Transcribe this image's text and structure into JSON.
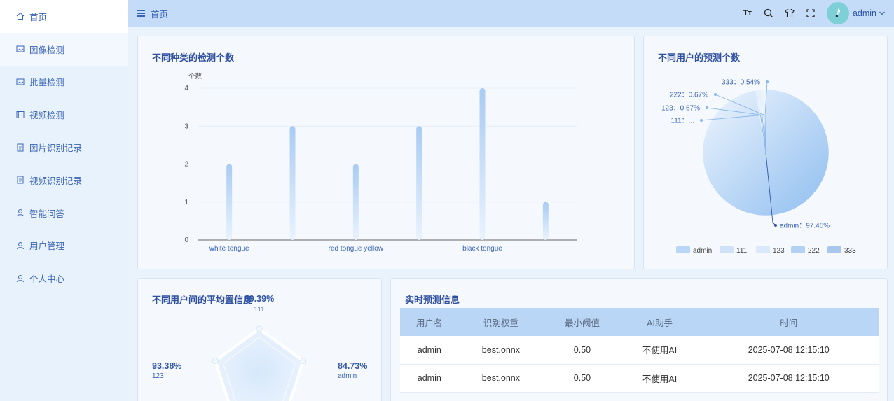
{
  "sidebar": {
    "items": [
      {
        "label": "首页",
        "icon": "home-icon"
      },
      {
        "label": "图像检测",
        "icon": "image-icon"
      },
      {
        "label": "批量检测",
        "icon": "image-icon"
      },
      {
        "label": "视频检测",
        "icon": "video-icon"
      },
      {
        "label": "图片识别记录",
        "icon": "record-icon"
      },
      {
        "label": "视频识别记录",
        "icon": "record-icon"
      },
      {
        "label": "智能问答",
        "icon": "user-icon"
      },
      {
        "label": "用户管理",
        "icon": "user-icon"
      },
      {
        "label": "个人中心",
        "icon": "user-icon"
      }
    ]
  },
  "header": {
    "breadcrumb": "首页",
    "username": "admin",
    "font_tool_label": "Tт"
  },
  "cards": {
    "bar_title": "不同种类的检测个数",
    "pie_title": "不同用户的预测个数",
    "radar_title": "不同用户间的平均置信度",
    "table_title": "实时预测信息"
  },
  "chart_data": [
    {
      "type": "bar",
      "title": "不同种类的检测个数",
      "ylabel": "个数",
      "ylim": [
        0,
        4
      ],
      "yticks": [
        "0",
        "1",
        "2",
        "3",
        "4"
      ],
      "category_labels_shown": [
        "white tongue",
        "red tongue yellow",
        "black tongue"
      ],
      "values": [
        2,
        3,
        2,
        3,
        4,
        1
      ]
    },
    {
      "type": "pie",
      "title": "不同用户的预测个数",
      "slices": [
        {
          "name": "admin",
          "value": 97.45,
          "label": "admin：97.45%"
        },
        {
          "name": "111",
          "value": 0.67,
          "label": "111：..."
        },
        {
          "name": "123",
          "value": 0.67,
          "label": "123：0.67%"
        },
        {
          "name": "222",
          "value": 0.67,
          "label": "222：0.67%"
        },
        {
          "name": "333",
          "value": 0.54,
          "label": "333：0.54%"
        }
      ],
      "legend": [
        "admin",
        "111",
        "123",
        "222",
        "333"
      ],
      "legend_position": "bottom"
    },
    {
      "type": "radar",
      "title": "不同用户间的平均置信度",
      "indicators": [
        {
          "name": "111",
          "value": "89.39%"
        },
        {
          "name": "admin",
          "value": "84.73%"
        },
        {
          "name": "123",
          "value": "93.38%"
        }
      ]
    }
  ],
  "table": {
    "headers": [
      "用户名",
      "识别权重",
      "最小阈值",
      "AI助手",
      "时间"
    ],
    "rows": [
      [
        "admin",
        "best.onnx",
        "0.50",
        "不使用AI",
        "2025-07-08 12:15:10"
      ],
      [
        "admin",
        "best.onnx",
        "0.50",
        "不使用AI",
        "2025-07-08 12:15:10"
      ]
    ]
  },
  "colors": {
    "accent": "#3a64b8",
    "header_bg": "#c4dcf7",
    "bar": "#b8d4f5"
  }
}
